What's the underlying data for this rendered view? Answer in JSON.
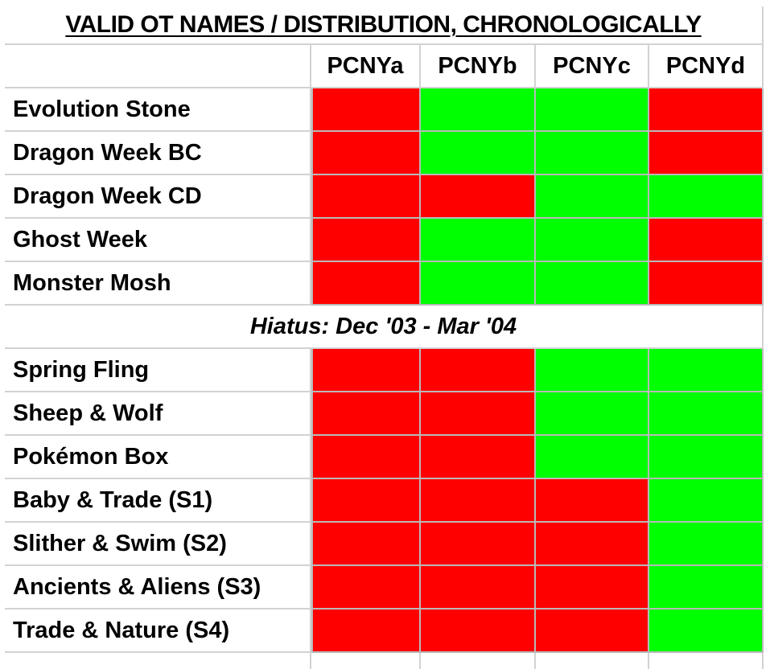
{
  "title": "VALID OT NAMES / DISTRIBUTION, CHRONOLOGICALLY",
  "columns": [
    "PCNYa",
    "PCNYb",
    "PCNYc",
    "PCNYd"
  ],
  "colors": {
    "valid": "#00ff00",
    "invalid": "#ff0000"
  },
  "hiatus": "Hiatus: Dec '03 - Mar '04",
  "rows_before": [
    {
      "name": "Evolution Stone",
      "valid": [
        false,
        true,
        true,
        false
      ]
    },
    {
      "name": "Dragon Week BC",
      "valid": [
        false,
        true,
        true,
        false
      ]
    },
    {
      "name": "Dragon Week CD",
      "valid": [
        false,
        false,
        true,
        true
      ]
    },
    {
      "name": "Ghost Week",
      "valid": [
        false,
        true,
        true,
        false
      ]
    },
    {
      "name": "Monster Mosh",
      "valid": [
        false,
        true,
        true,
        false
      ]
    }
  ],
  "rows_after": [
    {
      "name": "Spring Fling",
      "valid": [
        false,
        false,
        true,
        true
      ]
    },
    {
      "name": "Sheep & Wolf",
      "valid": [
        false,
        false,
        true,
        true
      ]
    },
    {
      "name": "Pokémon Box",
      "valid": [
        false,
        false,
        true,
        true
      ]
    },
    {
      "name": "Baby & Trade (S1)",
      "valid": [
        false,
        false,
        false,
        true
      ]
    },
    {
      "name": "Slither & Swim (S2)",
      "valid": [
        false,
        false,
        false,
        true
      ]
    },
    {
      "name": "Ancients & Aliens (S3)",
      "valid": [
        false,
        false,
        false,
        true
      ]
    },
    {
      "name": "Trade & Nature (S4)",
      "valid": [
        false,
        false,
        false,
        true
      ]
    }
  ]
}
